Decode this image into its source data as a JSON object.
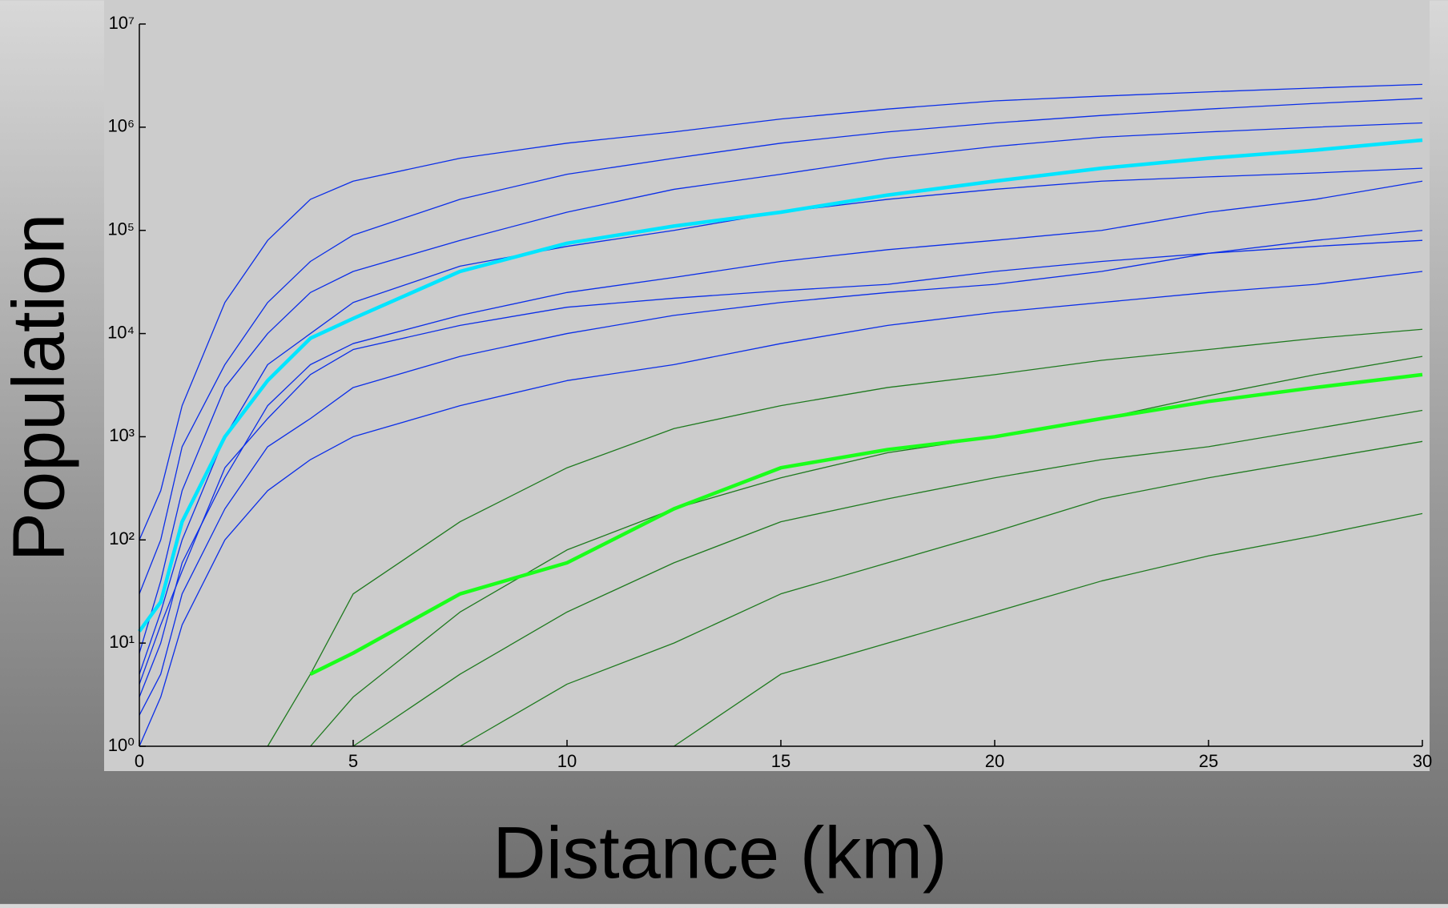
{
  "chart_data": {
    "type": "line",
    "yscale": "log",
    "xlabel": "Distance (km)",
    "ylabel": "Population",
    "x": [
      0,
      0.5,
      1,
      2,
      3,
      4,
      5,
      7.5,
      10,
      12.5,
      15,
      17.5,
      20,
      22.5,
      25,
      27.5,
      30
    ],
    "xlim": [
      0,
      30
    ],
    "xticks": [
      0,
      5,
      10,
      15,
      20,
      25,
      30
    ],
    "ylim": [
      1,
      10000000
    ],
    "yticks": [
      {
        "value": 1,
        "label": "10⁰"
      },
      {
        "value": 10,
        "label": "10¹"
      },
      {
        "value": 100,
        "label": "10²"
      },
      {
        "value": 1000,
        "label": "10³"
      },
      {
        "value": 10000,
        "label": "10⁴"
      },
      {
        "value": 100000,
        "label": "10⁵"
      },
      {
        "value": 1000000,
        "label": "10⁶"
      },
      {
        "value": 10000000,
        "label": "10⁷"
      }
    ],
    "series": [
      {
        "color": "#0b2ee8",
        "line_width": 1.3,
        "values": [
          100,
          300,
          2000,
          20000,
          80000,
          200000,
          300000,
          500000,
          700000,
          900000,
          1200000,
          1500000,
          1800000,
          2000000,
          2200000,
          2400000,
          2600000
        ]
      },
      {
        "color": "#0b2ee8",
        "line_width": 1.3,
        "values": [
          30,
          100,
          800,
          5000,
          20000,
          50000,
          90000,
          200000,
          350000,
          500000,
          700000,
          900000,
          1100000,
          1300000,
          1500000,
          1700000,
          1900000
        ]
      },
      {
        "color": "#0b2ee8",
        "line_width": 1.3,
        "values": [
          8,
          40,
          300,
          3000,
          10000,
          25000,
          40000,
          80000,
          150000,
          250000,
          350000,
          500000,
          650000,
          800000,
          900000,
          1000000,
          1100000
        ]
      },
      {
        "color": "#0b2ee8",
        "line_width": 1.3,
        "values": [
          5,
          20,
          100,
          1000,
          5000,
          10000,
          20000,
          45000,
          70000,
          100000,
          150000,
          200000,
          250000,
          300000,
          330000,
          360000,
          400000
        ]
      },
      {
        "color": "#0b2ee8",
        "line_width": 1.3,
        "values": [
          3,
          10,
          60,
          400,
          2000,
          5000,
          8000,
          15000,
          25000,
          35000,
          50000,
          65000,
          80000,
          100000,
          150000,
          200000,
          300000
        ]
      },
      {
        "color": "#0b2ee8",
        "line_width": 1.3,
        "values": [
          2,
          5,
          30,
          200,
          800,
          1500,
          3000,
          6000,
          10000,
          15000,
          20000,
          25000,
          30000,
          40000,
          60000,
          80000,
          100000
        ]
      },
      {
        "color": "#0b2ee8",
        "line_width": 1.3,
        "values": [
          1,
          3,
          15,
          100,
          300,
          600,
          1000,
          2000,
          3500,
          5000,
          8000,
          12000,
          16000,
          20000,
          25000,
          30000,
          40000
        ]
      },
      {
        "color": "#0b2ee8",
        "line_width": 1.3,
        "values": [
          4,
          15,
          50,
          500,
          1500,
          4000,
          7000,
          12000,
          18000,
          22000,
          26000,
          30000,
          40000,
          50000,
          60000,
          70000,
          80000
        ]
      },
      {
        "color": "#1f7a1f",
        "line_width": 1.3,
        "values": [
          null,
          null,
          null,
          null,
          1,
          5,
          30,
          150,
          500,
          1200,
          2000,
          3000,
          4000,
          5500,
          7000,
          9000,
          11000
        ]
      },
      {
        "color": "#1f7a1f",
        "line_width": 1.3,
        "values": [
          null,
          null,
          null,
          null,
          null,
          1,
          3,
          20,
          80,
          200,
          400,
          700,
          1000,
          1500,
          2500,
          4000,
          6000
        ]
      },
      {
        "color": "#1f7a1f",
        "line_width": 1.3,
        "values": [
          null,
          null,
          null,
          null,
          null,
          null,
          1,
          5,
          20,
          60,
          150,
          250,
          400,
          600,
          800,
          1200,
          1800
        ]
      },
      {
        "color": "#1f7a1f",
        "line_width": 1.3,
        "values": [
          null,
          null,
          null,
          null,
          null,
          null,
          null,
          1,
          4,
          10,
          30,
          60,
          120,
          250,
          400,
          600,
          900
        ]
      },
      {
        "color": "#1f7a1f",
        "line_width": 1.3,
        "values": [
          null,
          null,
          null,
          null,
          null,
          null,
          null,
          null,
          null,
          1,
          5,
          10,
          20,
          40,
          70,
          110,
          180
        ]
      },
      {
        "color": "#00e5ff",
        "line_width": 4.5,
        "values": [
          13,
          25,
          150,
          1000,
          3500,
          9000,
          14000,
          40000,
          75000,
          110000,
          150000,
          220000,
          300000,
          400000,
          500000,
          600000,
          750000
        ]
      },
      {
        "color": "#1aff1a",
        "line_width": 4.5,
        "values": [
          null,
          null,
          null,
          null,
          null,
          5,
          8,
          30,
          60,
          200,
          500,
          750,
          1000,
          1500,
          2200,
          3000,
          4000
        ]
      }
    ]
  }
}
